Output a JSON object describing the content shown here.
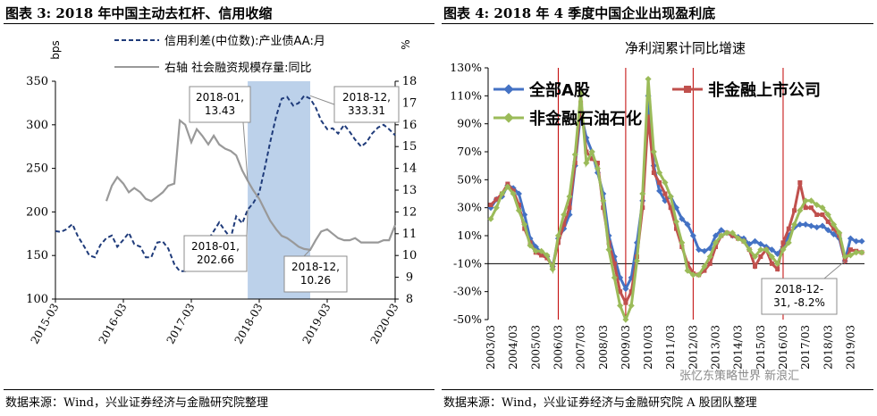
{
  "figures": [
    {
      "title": "图表 3:  2018 年中国主动去杠杆、信用收缩",
      "source": "数据来源：Wind，兴业证券经济与金融研究院整理"
    },
    {
      "title": "图表 4:  2018 年 4 季度中国企业出现盈利底",
      "source": "数据来源：Wind，兴业证券经济与金融研究院 A 股团队整理"
    }
  ],
  "watermark": "张忆东策略世界  新浪汇",
  "chart_data": [
    {
      "type": "line",
      "title": "",
      "ylabel_left": "bps",
      "ylabel_right": "%",
      "ylim_left": [
        100,
        350
      ],
      "ylim_right": [
        8,
        18
      ],
      "yticks_left": [
        "100",
        "150",
        "200",
        "250",
        "300",
        "350"
      ],
      "yticks_right": [
        "8",
        "9",
        "10",
        "11",
        "12",
        "13",
        "14",
        "15",
        "16",
        "17",
        "18"
      ],
      "x_ticks": [
        "2015-03",
        "2016-03",
        "2017-03",
        "2018-03",
        "2019-03",
        "2020-03"
      ],
      "grid": false,
      "legend_position": "top-center",
      "shaded_period": [
        "2018-01",
        "2018-12"
      ],
      "series": [
        {
          "name": "信用利差(中位数):产业债AA:月",
          "axis": "left",
          "color": "#1f3b7a",
          "dash": true,
          "x": [
            2015.17,
            2015.25,
            2015.33,
            2015.42,
            2015.5,
            2015.58,
            2015.67,
            2015.75,
            2015.83,
            2015.92,
            2016.0,
            2016.08,
            2016.17,
            2016.25,
            2016.33,
            2016.42,
            2016.5,
            2016.58,
            2016.67,
            2016.75,
            2016.83,
            2016.92,
            2017.0,
            2017.08,
            2017.17,
            2017.25,
            2017.33,
            2017.42,
            2017.5,
            2017.58,
            2017.67,
            2017.75,
            2017.83,
            2017.92,
            2018.0,
            2018.08,
            2018.17,
            2018.25,
            2018.33,
            2018.42,
            2018.5,
            2018.58,
            2018.67,
            2018.75,
            2018.83,
            2018.92,
            2019.0,
            2019.08,
            2019.17,
            2019.25,
            2019.33,
            2019.42,
            2019.5,
            2019.58,
            2019.67,
            2019.75,
            2019.83,
            2019.92,
            2020.0,
            2020.08,
            2020.17
          ],
          "values": [
            178,
            177,
            180,
            186,
            172,
            162,
            150,
            148,
            162,
            170,
            173,
            160,
            168,
            176,
            163,
            160,
            148,
            148,
            165,
            166,
            158,
            140,
            132,
            132,
            148,
            165,
            170,
            168,
            178,
            188,
            178,
            170,
            195,
            187,
            202.66,
            210,
            222,
            250,
            280,
            310,
            330,
            332,
            322,
            325,
            333.31,
            330,
            320,
            305,
            295,
            296,
            290,
            300,
            292,
            283,
            275,
            280,
            290,
            297,
            300,
            295,
            288
          ]
        },
        {
          "name": "右轴 社会融资规模存量:同比",
          "axis": "right",
          "color": "#999999",
          "dash": false,
          "x": [
            2015.92,
            2016.0,
            2016.08,
            2016.17,
            2016.25,
            2016.33,
            2016.42,
            2016.5,
            2016.58,
            2016.67,
            2016.75,
            2016.83,
            2016.92,
            2017.0,
            2017.08,
            2017.17,
            2017.25,
            2017.33,
            2017.42,
            2017.5,
            2017.58,
            2017.67,
            2017.75,
            2017.83,
            2017.92,
            2018.0,
            2018.08,
            2018.17,
            2018.25,
            2018.33,
            2018.42,
            2018.5,
            2018.58,
            2018.67,
            2018.75,
            2018.83,
            2018.92,
            2019.0,
            2019.08,
            2019.17,
            2019.25,
            2019.33,
            2019.42,
            2019.5,
            2019.58,
            2019.67,
            2019.75,
            2019.83,
            2019.92,
            2020.0,
            2020.08,
            2020.17
          ],
          "values": [
            12.5,
            13.2,
            13.6,
            13.3,
            12.9,
            13.1,
            12.9,
            12.6,
            12.5,
            12.7,
            12.9,
            13.2,
            13.3,
            16.2,
            16.0,
            15.2,
            15.8,
            15.5,
            15.1,
            15.5,
            15.1,
            14.9,
            14.8,
            14.6,
            13.9,
            13.43,
            13.0,
            12.6,
            12.1,
            11.6,
            11.2,
            10.9,
            10.8,
            10.6,
            10.4,
            10.3,
            10.26,
            10.7,
            11.1,
            11.2,
            11.0,
            10.8,
            10.7,
            10.7,
            10.8,
            10.6,
            10.6,
            10.6,
            10.6,
            10.7,
            10.7,
            11.4
          ]
        }
      ],
      "annotations": [
        {
          "label": "2018-01,\n13.43",
          "x": 2018.0,
          "y": 13.43,
          "axis": "right"
        },
        {
          "label": "2018-12,\n333.31",
          "x": 2018.92,
          "y": 333.31,
          "axis": "left"
        },
        {
          "label": "2018-01,\n202.66",
          "x": 2018.0,
          "y": 202.66,
          "axis": "left"
        },
        {
          "label": "2018-12,\n10.26",
          "x": 2018.92,
          "y": 10.26,
          "axis": "right"
        }
      ]
    },
    {
      "type": "line",
      "title": "净利润累计同比增速",
      "ylim": [
        -50,
        130
      ],
      "yticks": [
        "-50%",
        "-30%",
        "-10%",
        "10%",
        "30%",
        "50%",
        "70%",
        "90%",
        "110%",
        "130%"
      ],
      "x_ticks": [
        "2003/03",
        "2004/03",
        "2005/03",
        "2006/03",
        "2007/03",
        "2008/03",
        "2009/03",
        "2010/03",
        "2011/03",
        "2012/03",
        "2013/03",
        "2014/03",
        "2015/03",
        "2016/03",
        "2017/03",
        "2018/03",
        "2019/03"
      ],
      "grid": false,
      "legend_position": "top-left",
      "vlines": [
        "2006/03",
        "2009/03",
        "2012/03",
        "2016/03"
      ],
      "x_quarters": [
        "2003Q1",
        "2003Q2",
        "2003Q3",
        "2003Q4",
        "2004Q1",
        "2004Q2",
        "2004Q3",
        "2004Q4",
        "2005Q1",
        "2005Q2",
        "2005Q3",
        "2005Q4",
        "2006Q1",
        "2006Q2",
        "2006Q3",
        "2006Q4",
        "2007Q1",
        "2007Q2",
        "2007Q3",
        "2007Q4",
        "2008Q1",
        "2008Q2",
        "2008Q3",
        "2008Q4",
        "2009Q1",
        "2009Q2",
        "2009Q3",
        "2009Q4",
        "2010Q1",
        "2010Q2",
        "2010Q3",
        "2010Q4",
        "2011Q1",
        "2011Q2",
        "2011Q3",
        "2011Q4",
        "2012Q1",
        "2012Q2",
        "2012Q3",
        "2012Q4",
        "2013Q1",
        "2013Q2",
        "2013Q3",
        "2013Q4",
        "2014Q1",
        "2014Q2",
        "2014Q3",
        "2014Q4",
        "2015Q1",
        "2015Q2",
        "2015Q3",
        "2015Q4",
        "2016Q1",
        "2016Q2",
        "2016Q3",
        "2016Q4",
        "2017Q1",
        "2017Q2",
        "2017Q3",
        "2017Q4",
        "2018Q1",
        "2018Q2",
        "2018Q3",
        "2018Q4",
        "2019Q1",
        "2019Q2",
        "2019Q3"
      ],
      "series": [
        {
          "name": "全部A股",
          "color": "#4472c4",
          "values": [
            30,
            36,
            38,
            46,
            44,
            40,
            25,
            8,
            2,
            -2,
            -5,
            -12,
            8,
            15,
            25,
            60,
            98,
            80,
            70,
            55,
            40,
            10,
            -5,
            -20,
            -28,
            -20,
            5,
            35,
            110,
            60,
            42,
            35,
            38,
            30,
            22,
            18,
            10,
            0,
            -1,
            1,
            10,
            14,
            12,
            10,
            9,
            8,
            4,
            6,
            4,
            2,
            0,
            -3,
            2,
            10,
            16,
            18,
            18,
            17,
            16,
            17,
            14,
            11,
            8,
            -8,
            8,
            6,
            6
          ]
        },
        {
          "name": "非金融上市公司",
          "color": "#c0504d",
          "values": [
            32,
            36,
            40,
            47,
            42,
            32,
            15,
            5,
            -2,
            -4,
            -6,
            -12,
            5,
            18,
            30,
            62,
            105,
            70,
            65,
            62,
            30,
            5,
            -10,
            -30,
            -38,
            -30,
            -5,
            30,
            95,
            55,
            48,
            40,
            30,
            15,
            2,
            -10,
            -17,
            -18,
            -15,
            -10,
            2,
            10,
            12,
            10,
            8,
            6,
            0,
            -12,
            -5,
            0,
            -10,
            -14,
            5,
            15,
            28,
            48,
            30,
            30,
            25,
            25,
            20,
            15,
            10,
            -8,
            0,
            -1,
            -2
          ]
        },
        {
          "name": "非金融石油石化",
          "color": "#9bbb59",
          "values": [
            22,
            30,
            40,
            45,
            40,
            28,
            18,
            3,
            -1,
            -1,
            -4,
            -14,
            10,
            25,
            38,
            68,
            112,
            62,
            70,
            58,
            35,
            0,
            -20,
            -40,
            -50,
            -40,
            -8,
            40,
            122,
            70,
            55,
            48,
            38,
            20,
            5,
            -15,
            -18,
            -18,
            -12,
            -5,
            5,
            10,
            12,
            12,
            8,
            6,
            0,
            -5,
            0,
            0,
            -5,
            -10,
            0,
            5,
            18,
            28,
            35,
            35,
            32,
            30,
            25,
            18,
            12,
            -5,
            -4,
            -2,
            -2
          ]
        }
      ],
      "annotations": [
        {
          "label": "2018-12-\n31, -8.2%",
          "x": "2018Q4",
          "y": -8.2
        }
      ]
    }
  ]
}
